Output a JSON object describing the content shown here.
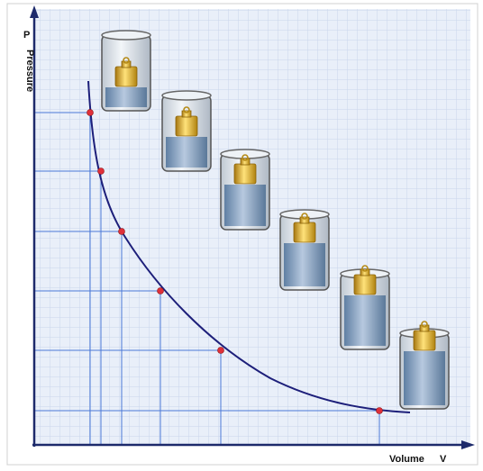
{
  "axes": {
    "y_symbol": "P",
    "y_label": "Pressure",
    "x_label": "Volume",
    "x_symbol": "V"
  }
}
